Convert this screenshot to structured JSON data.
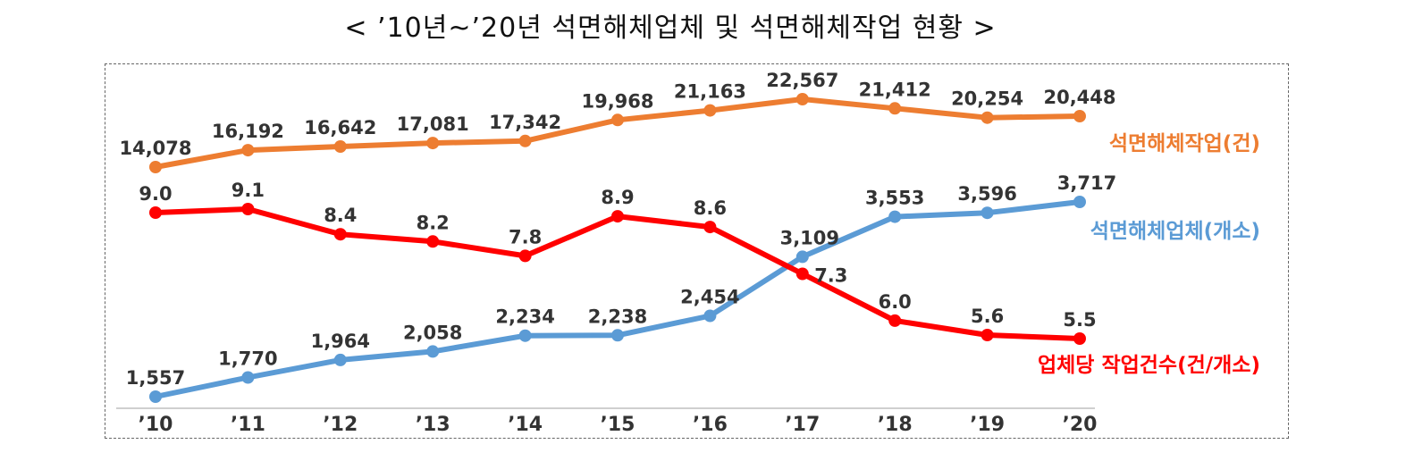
{
  "title": "< ’10년~’20년 석면해체업체 및 석면해체작업 현황 >",
  "chart_data": {
    "type": "line",
    "title": "< ’10년~’20년 석면해체업체 및 석면해체작업 현황 >",
    "categories": [
      "’10",
      "’11",
      "’12",
      "’13",
      "’14",
      "’15",
      "’16",
      "’17",
      "’18",
      "’19",
      "’20"
    ],
    "series": [
      {
        "name": "석면해체작업(건)",
        "color": "#ED7D31",
        "values": [
          14078,
          16192,
          16642,
          17081,
          17342,
          19968,
          21163,
          22567,
          21412,
          20254,
          20448
        ],
        "labels": [
          "14,078",
          "16,192",
          "16,642",
          "17,081",
          "17,342",
          "19,968",
          "21,163",
          "22,567",
          "21,412",
          "20,254",
          "20,448"
        ]
      },
      {
        "name": "석면해체업체(개소)",
        "color": "#5B9BD5",
        "values": [
          1557,
          1770,
          1964,
          2058,
          2234,
          2238,
          2454,
          3109,
          3553,
          3596,
          3717
        ],
        "labels": [
          "1,557",
          "1,770",
          "1,964",
          "2,058",
          "2,234",
          "2,238",
          "2,454",
          "3,109",
          "3,553",
          "3,596",
          "3,717"
        ]
      },
      {
        "name": "업체당 작업건수(건/개소)",
        "color": "#FF0000",
        "values": [
          9.0,
          9.1,
          8.4,
          8.2,
          7.8,
          8.9,
          8.6,
          7.3,
          6.0,
          5.6,
          5.5
        ],
        "labels": [
          "9.0",
          "9.1",
          "8.4",
          "8.2",
          "7.8",
          "8.9",
          "8.6",
          "7.3",
          "6.0",
          "5.6",
          "5.5"
        ]
      }
    ],
    "grid": false,
    "legend": "inline-right"
  }
}
